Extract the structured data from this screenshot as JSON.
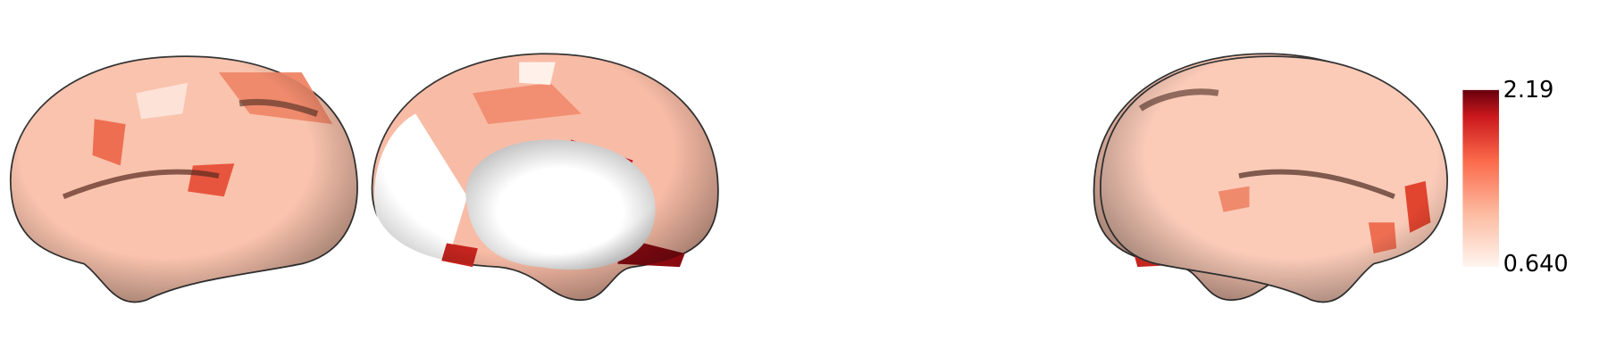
{
  "colorbar": {
    "max_label": "2.19",
    "min_label": "0.640"
  }
}
